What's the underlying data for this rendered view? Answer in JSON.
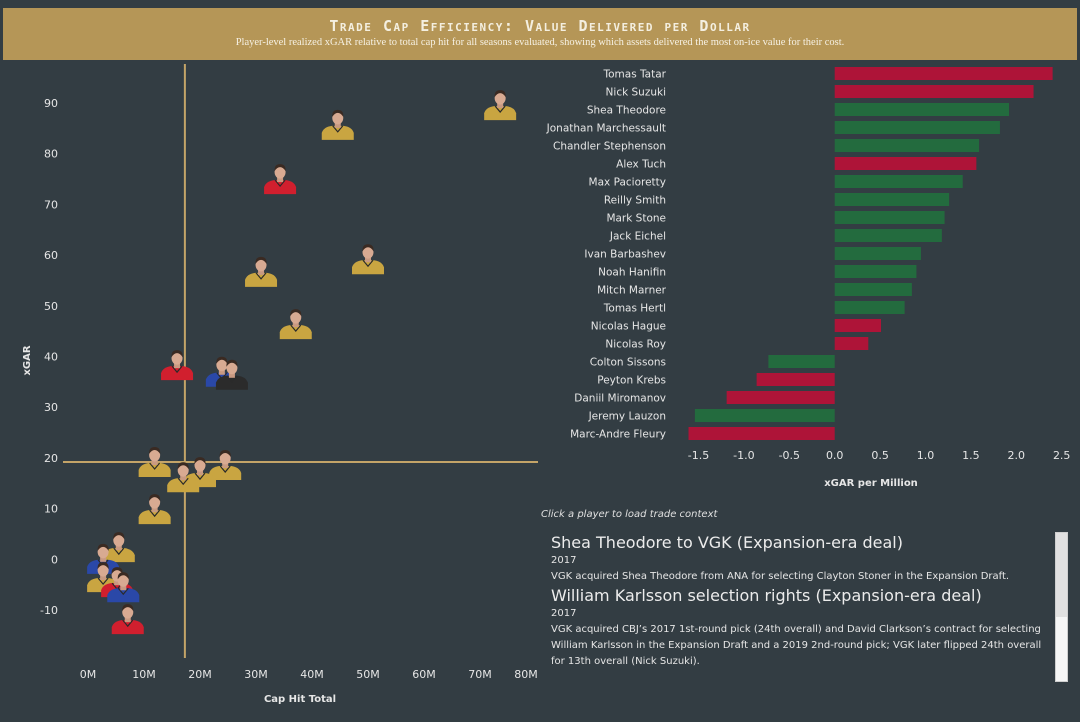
{
  "header": {
    "title": "Trade Cap Efficiency: Value Delivered per Dollar",
    "subtitle": "Player-level realized xGAR relative to total cap hit for all seasons evaluated, showing which assets delivered the most on-ice value for their cost."
  },
  "colors": {
    "header_bg": "#b59657",
    "page_bg": "#333d43",
    "reference_line": "#c4a468",
    "bar_positive_type": "#236b3e",
    "bar_negative_type": "#ae1438",
    "jersey_gold": "#c9a541",
    "jersey_red": "#d11f2e",
    "jersey_blue": "#2a48a8",
    "jersey_black": "#2b2b2b"
  },
  "chart_data": [
    {
      "type": "scatter",
      "title": "",
      "xlabel": "Cap Hit Total",
      "ylabel": "xGAR",
      "xlim": [
        -1.5,
        81
      ],
      "ylim": [
        -17,
        97
      ],
      "x_ticks": [
        "0M",
        "10M",
        "20M",
        "30M",
        "40M",
        "50M",
        "60M",
        "70M",
        "80M"
      ],
      "x_tick_values": [
        0,
        10,
        20,
        30,
        40,
        50,
        60,
        70,
        80
      ],
      "y_ticks": [
        "90",
        "80",
        "70",
        "60",
        "50",
        "40",
        "30",
        "20",
        "10",
        "0",
        "-10"
      ],
      "y_tick_values": [
        90,
        80,
        70,
        60,
        50,
        40,
        30,
        20,
        10,
        0,
        -10
      ],
      "grid": false,
      "reference_lines": {
        "x_avg": 17.3,
        "y_avg": 19.2
      },
      "marker": "player headshot (jersey color)",
      "points": [
        {
          "x": 73.6,
          "y": 89.0,
          "jersey": "gold"
        },
        {
          "x": 44.6,
          "y": 85.1,
          "jersey": "gold"
        },
        {
          "x": 34.3,
          "y": 74.4,
          "jersey": "red"
        },
        {
          "x": 50.0,
          "y": 58.6,
          "jersey": "gold"
        },
        {
          "x": 30.9,
          "y": 56.1,
          "jersey": "gold"
        },
        {
          "x": 37.1,
          "y": 45.8,
          "jersey": "gold"
        },
        {
          "x": 15.9,
          "y": 37.7,
          "jersey": "red"
        },
        {
          "x": 23.9,
          "y": 36.4,
          "jersey": "blue"
        },
        {
          "x": 25.7,
          "y": 35.8,
          "jersey": "black"
        },
        {
          "x": 11.9,
          "y": 18.6,
          "jersey": "gold"
        },
        {
          "x": 24.5,
          "y": 18.0,
          "jersey": "gold"
        },
        {
          "x": 20.0,
          "y": 16.6,
          "jersey": "gold"
        },
        {
          "x": 17.0,
          "y": 15.6,
          "jersey": "gold"
        },
        {
          "x": 11.9,
          "y": 9.3,
          "jersey": "gold"
        },
        {
          "x": 5.5,
          "y": 1.8,
          "jersey": "gold"
        },
        {
          "x": 2.7,
          "y": -0.5,
          "jersey": "blue"
        },
        {
          "x": 2.7,
          "y": -4.1,
          "jersey": "gold"
        },
        {
          "x": 5.2,
          "y": -5.1,
          "jersey": "red"
        },
        {
          "x": 6.3,
          "y": -6.1,
          "jersey": "blue"
        },
        {
          "x": 7.1,
          "y": -12.4,
          "jersey": "red"
        }
      ]
    },
    {
      "type": "bar",
      "orientation": "horizontal",
      "title": "",
      "xlabel": "xGAR per Million",
      "ylabel": "",
      "xlim": [
        -1.67,
        2.6
      ],
      "x_ticks": [
        "-1.5",
        "-1.0",
        "-0.5",
        "0.0",
        "0.5",
        "1.0",
        "1.5",
        "2.0",
        "2.5"
      ],
      "x_tick_values": [
        -1.5,
        -1.0,
        -0.5,
        0.0,
        0.5,
        1.0,
        1.5,
        2.0,
        2.5
      ],
      "grid": false,
      "legend": "none",
      "categories": [
        "Tomas Tatar",
        "Nick Suzuki",
        "Shea Theodore",
        "Jonathan Marchessault",
        "Chandler Stephenson",
        "Alex Tuch",
        "Max Pacioretty",
        "Reilly Smith",
        "Mark Stone",
        "Jack Eichel",
        "Ivan Barbashev",
        "Noah Hanifin",
        "Mitch Marner",
        "Tomas Hertl",
        "Nicolas Hague",
        "Nicolas Roy",
        "Colton Sissons",
        "Peyton Krebs",
        "Daniil Miromanov",
        "Jeremy Lauzon",
        "Marc-Andre Fleury"
      ],
      "values": [
        2.4,
        2.19,
        1.92,
        1.82,
        1.59,
        1.56,
        1.41,
        1.26,
        1.21,
        1.18,
        0.95,
        0.9,
        0.85,
        0.77,
        0.51,
        0.37,
        -0.73,
        -0.86,
        -1.19,
        -1.54,
        -1.61
      ],
      "bar_color_group": [
        "out",
        "out",
        "in",
        "in",
        "in",
        "out",
        "in",
        "in",
        "in",
        "in",
        "in",
        "in",
        "in",
        "in",
        "out",
        "out",
        "in",
        "out",
        "out",
        "in",
        "out"
      ]
    }
  ],
  "context_panel": {
    "hint": "Click a player to load trade context",
    "trades": [
      {
        "title": "Shea Theodore to VGK (Expansion-era deal)",
        "year": "2017",
        "description": "VGK acquired Shea Theodore from ANA for selecting Clayton Stoner in the Expansion Draft."
      },
      {
        "title": "William Karlsson selection rights (Expansion-era deal)",
        "year": "2017",
        "description": "VGK acquired CBJ’s 2017 1st-round pick (24th overall) and David Clarkson’s contract for selecting William Karlsson in the Expansion Draft and a 2019 2nd-round pick; VGK later flipped 24th overall for 13th overall (Nick Suzuki)."
      }
    ]
  }
}
